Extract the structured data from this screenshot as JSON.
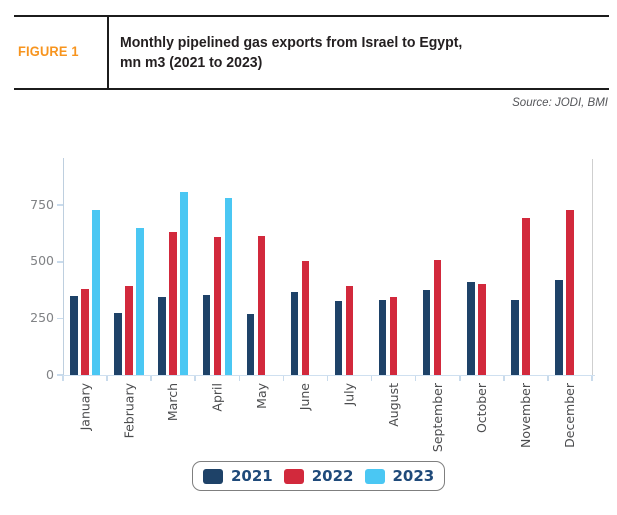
{
  "figure": {
    "label": "FIGURE 1",
    "title_line1": "Monthly pipelined gas exports from Israel to Egypt,",
    "title_line2": "mn m3 (2021 to 2023)"
  },
  "source": "Source: JODI, BMI",
  "colors": {
    "figure_label_orange": "#F7941E",
    "title_text": "#231F20",
    "source_text": "#55565A",
    "series_2021_navy": "#1E4268",
    "series_2022_red": "#D2293C",
    "series_2023_cyan": "#4AC7F3",
    "axis_line_blue": "#BECFDF",
    "baseline_blue": "#CFE0F0",
    "legend_text_blue": "#1F4A7A"
  },
  "chart_data": {
    "type": "bar",
    "title": "Monthly pipelined gas exports from Israel to Egypt, mn m3 (2021 to 2023)",
    "xlabel": "",
    "ylabel": "",
    "categories": [
      "January",
      "February",
      "March",
      "April",
      "May",
      "June",
      "July",
      "August",
      "September",
      "October",
      "November",
      "December"
    ],
    "series": [
      {
        "name": "2021",
        "color": "#1E4268",
        "values": [
          350,
          275,
          345,
          355,
          270,
          365,
          325,
          330,
          375,
          410,
          330,
          420
        ]
      },
      {
        "name": "2022",
        "color": "#D2293C",
        "values": [
          380,
          395,
          630,
          610,
          615,
          505,
          395,
          345,
          510,
          400,
          695,
          730
        ]
      },
      {
        "name": "2023",
        "color": "#4AC7F3",
        "values": [
          730,
          650,
          810,
          780,
          null,
          null,
          null,
          null,
          null,
          null,
          null,
          null
        ]
      }
    ],
    "yticks": [
      0,
      250,
      500,
      750
    ],
    "ylim": [
      0,
      950
    ],
    "grid": false,
    "legend_position": "bottom"
  }
}
